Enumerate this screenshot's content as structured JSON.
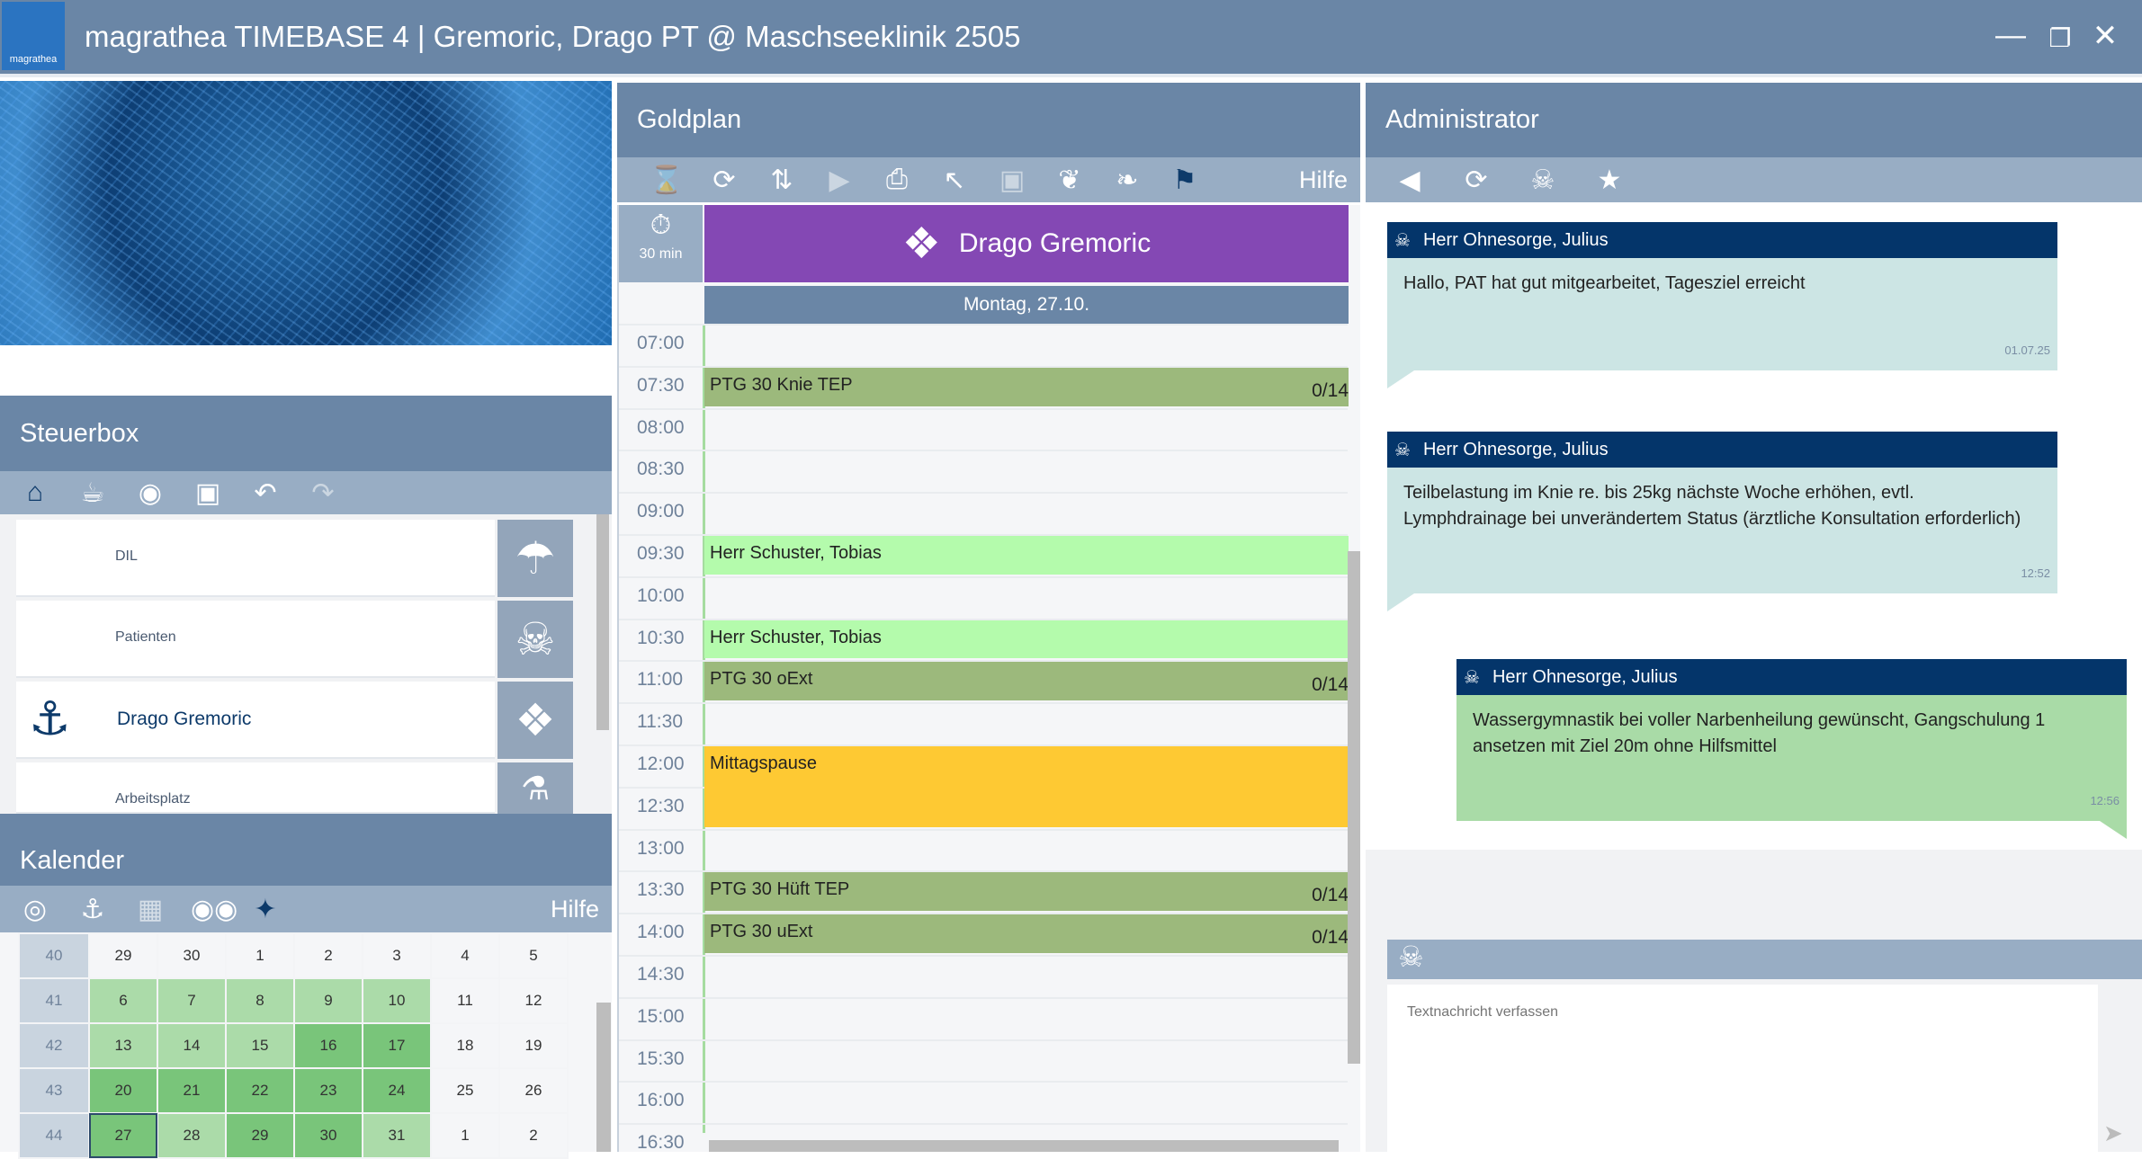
{
  "window": {
    "logo_text": "magrathea",
    "title": "magrathea TIMEBASE 4 | Gremoric, Drago PT @ Maschseeklinik 2505"
  },
  "steuerbox": {
    "title": "Steuerbox",
    "toolbar_icons": [
      "home-icon",
      "coffee-icon",
      "camera-refresh-icon",
      "camera-icon",
      "undo-icon",
      "redo-icon"
    ],
    "items": [
      {
        "label": "DIL",
        "icon": "jellyfish-icon"
      },
      {
        "label": "Patienten",
        "icon": "octopus-icon"
      },
      {
        "label": "Drago Gremoric",
        "icon": "fish-icon",
        "left_icon": "anchor-icon"
      },
      {
        "label": "Arbeitsplatz",
        "icon": "flask-icon"
      }
    ]
  },
  "kalender": {
    "title": "Kalender",
    "help": "Hilfe",
    "toolbar_icons": [
      "target-icon",
      "anchor-icon",
      "hospital-icon",
      "owl-icon",
      "pin-icon"
    ],
    "weeks": [
      {
        "wk": "40",
        "days": [
          "29",
          "30",
          "1",
          "2",
          "3",
          "4",
          "5"
        ],
        "shade": [
          "",
          "",
          "",
          "",
          "",
          "",
          ""
        ]
      },
      {
        "wk": "41",
        "days": [
          "6",
          "7",
          "8",
          "9",
          "10",
          "11",
          "12"
        ],
        "shade": [
          "l",
          "l",
          "l",
          "l",
          "l",
          "",
          ""
        ]
      },
      {
        "wk": "42",
        "days": [
          "13",
          "14",
          "15",
          "16",
          "17",
          "18",
          "19"
        ],
        "shade": [
          "l",
          "l",
          "l",
          "d",
          "d",
          "",
          ""
        ]
      },
      {
        "wk": "43",
        "days": [
          "20",
          "21",
          "22",
          "23",
          "24",
          "25",
          "26"
        ],
        "shade": [
          "d",
          "d",
          "d",
          "d",
          "d",
          "",
          ""
        ]
      },
      {
        "wk": "44",
        "days": [
          "27",
          "28",
          "29",
          "30",
          "31",
          "1",
          "2"
        ],
        "shade": [
          "d sel",
          "l",
          "d",
          "d",
          "l",
          "",
          ""
        ]
      }
    ],
    "colors": {
      "light": "#abdba9",
      "dark": "#79c57a"
    }
  },
  "goldplan": {
    "title": "Goldplan",
    "help": "Hilfe",
    "toolbar_icons": [
      "hourglass-icon",
      "refresh-icon",
      "swap-icon",
      "play-timer-icon",
      "print-icon",
      "cursor-icon",
      "briefcase-icon",
      "leaf-cross-icon",
      "leaf-icon",
      "checkered-flag-icon"
    ],
    "interval": "30 min",
    "patient": "Drago Gremoric",
    "patient_color": "#8448b4",
    "date": "Montag, 27.10.",
    "times": [
      "07:00",
      "07:30",
      "08:00",
      "08:30",
      "09:00",
      "09:30",
      "10:00",
      "10:30",
      "11:00",
      "11:30",
      "12:00",
      "12:30",
      "13:00",
      "13:30",
      "14:00",
      "14:30",
      "15:00",
      "15:30",
      "16:00",
      "16:30"
    ],
    "events": [
      {
        "start": "07:30",
        "slots": 1,
        "label": "PTG 30 Knie TEP",
        "count": "0/14",
        "color": "#9cb97c"
      },
      {
        "start": "09:30",
        "slots": 1,
        "label": "Herr Schuster, Tobias",
        "count": "",
        "color": "#b4fbac"
      },
      {
        "start": "10:30",
        "slots": 1,
        "label": "Herr Schuster, Tobias",
        "count": "",
        "color": "#b4fbac"
      },
      {
        "start": "11:00",
        "slots": 1,
        "label": "PTG 30 oExt",
        "count": "0/14",
        "color": "#9cb97c"
      },
      {
        "start": "12:00",
        "slots": 2,
        "label": "Mittagspause",
        "count": "",
        "color": "#fec933"
      },
      {
        "start": "13:30",
        "slots": 1,
        "label": "PTG 30 Hüft TEP",
        "count": "0/14",
        "color": "#9cb97c"
      },
      {
        "start": "14:00",
        "slots": 1,
        "label": "PTG 30 uExt",
        "count": "0/14",
        "color": "#9cb97c"
      }
    ]
  },
  "admin": {
    "title": "Administrator",
    "toolbar_icons": [
      "back-icon",
      "refresh-icon",
      "octopus-icon",
      "star-icon"
    ],
    "messages": [
      {
        "author": "Herr Ohnesorge, Julius",
        "text": "Hallo, PAT hat gut mitgearbeitet, Tagesziel erreicht",
        "time": "01.07.25",
        "own": false
      },
      {
        "author": "Herr Ohnesorge, Julius",
        "text": "Teilbelastung im Knie re. bis 25kg nächste Woche erhöhen, evtl. Lymphdrainage bei unverändertem Status (ärztliche Konsultation erforderlich)",
        "time": "12:52",
        "own": false
      },
      {
        "author": "Herr Ohnesorge, Julius",
        "text": "Wassergymnastik bei voller Narbenheilung gewünscht, Gangschulung 1 ansetzen mit Ziel 20m ohne Hilfsmittel",
        "time": "12:56",
        "own": true
      }
    ],
    "compose_placeholder": "Textnachricht verfassen"
  }
}
